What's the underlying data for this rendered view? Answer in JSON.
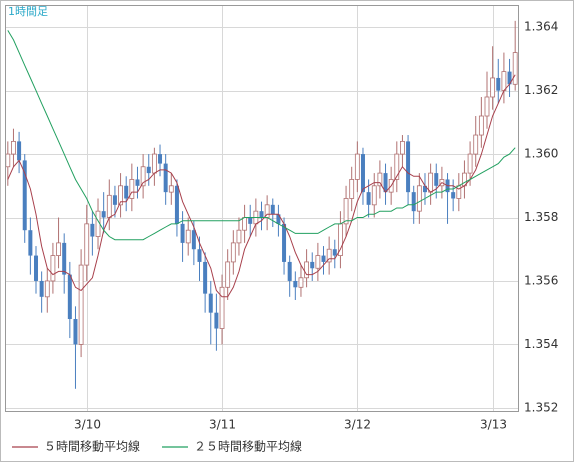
{
  "chart_data": {
    "type": "candlestick",
    "title": "1時間足",
    "categories": [
      null,
      null,
      null,
      null,
      null,
      null,
      null,
      null,
      null,
      null,
      null,
      null,
      null,
      null,
      "3/10",
      null,
      null,
      null,
      null,
      null,
      null,
      null,
      null,
      null,
      null,
      null,
      null,
      null,
      null,
      null,
      null,
      null,
      null,
      null,
      null,
      null,
      null,
      null,
      "3/11",
      null,
      null,
      null,
      null,
      null,
      null,
      null,
      null,
      null,
      null,
      null,
      null,
      null,
      null,
      null,
      null,
      null,
      null,
      null,
      null,
      null,
      null,
      null,
      "3/12",
      null,
      null,
      null,
      null,
      null,
      null,
      null,
      null,
      null,
      null,
      null,
      null,
      null,
      null,
      null,
      null,
      null,
      null,
      null,
      null,
      null,
      null,
      null,
      "3/13",
      null,
      null,
      null,
      null
    ],
    "open": [
      1.3596,
      1.36,
      1.3604,
      1.3598,
      1.3576,
      1.3568,
      1.356,
      1.3555,
      1.356,
      1.3568,
      1.3572,
      1.3562,
      1.3548,
      1.354,
      1.3565,
      1.3578,
      1.3574,
      1.3582,
      1.358,
      1.3587,
      1.3584,
      1.359,
      1.3586,
      1.3592,
      1.359,
      1.3596,
      1.3594,
      1.36,
      1.3597,
      1.3588,
      1.359,
      1.3578,
      1.3572,
      1.3576,
      1.357,
      1.3566,
      1.3556,
      1.355,
      1.3545,
      1.3558,
      1.3566,
      1.3572,
      1.3576,
      1.358,
      1.3578,
      1.3582,
      1.358,
      1.3584,
      1.3581,
      1.3578,
      1.3566,
      1.356,
      1.3558,
      1.3561,
      1.3566,
      1.3564,
      1.3568,
      1.3566,
      1.357,
      1.3568,
      1.3578,
      1.3586,
      1.3592,
      1.36,
      1.3588,
      1.3584,
      1.359,
      1.3594,
      1.3588,
      1.3592,
      1.36,
      1.3604,
      1.3588,
      1.3582,
      1.359,
      1.3588,
      1.3594,
      1.359,
      1.3592,
      1.3588,
      1.3586,
      1.359,
      1.3594,
      1.36,
      1.3606,
      1.3612,
      1.3618,
      1.3624,
      1.362,
      1.3626,
      1.3622
    ],
    "high": [
      1.3604,
      1.3608,
      1.3607,
      1.36,
      1.358,
      1.3571,
      1.3563,
      1.3564,
      1.3572,
      1.358,
      1.3575,
      1.3566,
      1.3552,
      1.357,
      1.3584,
      1.3582,
      1.3586,
      1.3588,
      1.3592,
      1.359,
      1.3594,
      1.3593,
      1.3597,
      1.3596,
      1.36,
      1.36,
      1.3602,
      1.3603,
      1.36,
      1.3594,
      1.3592,
      1.3582,
      1.358,
      1.3579,
      1.3574,
      1.3569,
      1.356,
      1.3556,
      1.3562,
      1.357,
      1.3576,
      1.358,
      1.3584,
      1.3584,
      1.3586,
      1.3585,
      1.3587,
      1.3586,
      1.3584,
      1.358,
      1.3568,
      1.3563,
      1.3565,
      1.357,
      1.3569,
      1.3572,
      1.3571,
      1.3574,
      1.3573,
      1.3582,
      1.359,
      1.3596,
      1.3604,
      1.3602,
      1.3592,
      1.3594,
      1.3598,
      1.3597,
      1.3596,
      1.3604,
      1.3606,
      1.3606,
      1.359,
      1.3594,
      1.3594,
      1.3597,
      1.3597,
      1.3596,
      1.3594,
      1.3592,
      1.3594,
      1.3598,
      1.3604,
      1.3612,
      1.3618,
      1.3626,
      1.3634,
      1.363,
      1.3632,
      1.363,
      1.3642
    ],
    "low": [
      1.359,
      1.3596,
      1.3594,
      1.3572,
      1.3562,
      1.3556,
      1.355,
      1.355,
      1.3556,
      1.3564,
      1.3556,
      1.3542,
      1.3526,
      1.3536,
      1.356,
      1.3568,
      1.357,
      1.3575,
      1.3576,
      1.358,
      1.358,
      1.3582,
      1.3582,
      1.3586,
      1.3586,
      1.359,
      1.359,
      1.3593,
      1.3584,
      1.3584,
      1.3574,
      1.3566,
      1.3568,
      1.3565,
      1.356,
      1.355,
      1.354,
      1.3538,
      1.354,
      1.3554,
      1.3562,
      1.3568,
      1.3572,
      1.3574,
      1.3574,
      1.3576,
      1.3576,
      1.3577,
      1.3574,
      1.3562,
      1.3555,
      1.3554,
      1.3555,
      1.3558,
      1.356,
      1.356,
      1.3562,
      1.3562,
      1.3564,
      1.3564,
      1.3574,
      1.3582,
      1.3588,
      1.3584,
      1.358,
      1.358,
      1.3586,
      1.3584,
      1.3584,
      1.3588,
      1.3596,
      1.3584,
      1.3578,
      1.3578,
      1.3584,
      1.3584,
      1.3586,
      1.3586,
      1.3578,
      1.3582,
      1.3582,
      1.3586,
      1.359,
      1.3596,
      1.3602,
      1.3608,
      1.3614,
      1.3616,
      1.3616,
      1.3618,
      1.362
    ],
    "close": [
      1.36,
      1.3604,
      1.3598,
      1.3576,
      1.3568,
      1.356,
      1.3555,
      1.356,
      1.3568,
      1.3572,
      1.3562,
      1.3548,
      1.354,
      1.3565,
      1.3578,
      1.3574,
      1.3582,
      1.358,
      1.3587,
      1.3584,
      1.359,
      1.3586,
      1.3592,
      1.359,
      1.3596,
      1.3594,
      1.36,
      1.3597,
      1.3588,
      1.359,
      1.3578,
      1.3572,
      1.3576,
      1.357,
      1.3566,
      1.3556,
      1.355,
      1.3545,
      1.3558,
      1.3566,
      1.3572,
      1.3576,
      1.358,
      1.3578,
      1.3582,
      1.358,
      1.3584,
      1.3581,
      1.3578,
      1.3566,
      1.356,
      1.3558,
      1.3561,
      1.3566,
      1.3564,
      1.3568,
      1.3566,
      1.357,
      1.3568,
      1.3578,
      1.3586,
      1.3592,
      1.36,
      1.3588,
      1.3584,
      1.359,
      1.3594,
      1.3588,
      1.3592,
      1.36,
      1.3604,
      1.3588,
      1.3582,
      1.359,
      1.3588,
      1.3594,
      1.359,
      1.3592,
      1.3588,
      1.3586,
      1.359,
      1.3594,
      1.36,
      1.3606,
      1.3612,
      1.3618,
      1.3624,
      1.362,
      1.3626,
      1.3622,
      1.3632
    ],
    "up_color": "#ffffff",
    "up_edge": "#b07070",
    "down_color": "#4a7fbf",
    "series": [
      {
        "name": "５時間移動平均線",
        "color": "#a8404c",
        "values": [
          1.3592,
          1.3596,
          1.3598,
          1.3594,
          1.3589,
          1.3581,
          1.3571,
          1.3564,
          1.3562,
          1.3563,
          1.3563,
          1.3562,
          1.3558,
          1.3557,
          1.3559,
          1.3561,
          1.3568,
          1.3576,
          1.358,
          1.3581,
          1.3585,
          1.3585,
          1.3588,
          1.3588,
          1.3591,
          1.3592,
          1.3594,
          1.3595,
          1.3595,
          1.3594,
          1.3591,
          1.3585,
          1.3581,
          1.3577,
          1.3572,
          1.3568,
          1.3564,
          1.3557,
          1.3555,
          1.3555,
          1.3558,
          1.3563,
          1.357,
          1.3574,
          1.3578,
          1.3579,
          1.3581,
          1.3581,
          1.3581,
          1.3578,
          1.3574,
          1.3569,
          1.3565,
          1.3562,
          1.3562,
          1.3563,
          1.3565,
          1.3567,
          1.3567,
          1.357,
          1.3574,
          1.3579,
          1.3585,
          1.3589,
          1.359,
          1.3591,
          1.3591,
          1.3588,
          1.359,
          1.3593,
          1.3596,
          1.3594,
          1.3593,
          1.3593,
          1.359,
          1.3588,
          1.3589,
          1.3591,
          1.359,
          1.359,
          1.3589,
          1.359,
          1.3592,
          1.3595,
          1.36,
          1.3606,
          1.3612,
          1.3616,
          1.362,
          1.3622,
          1.3625
        ]
      },
      {
        "name": "２５時間移動平均線",
        "color": "#22a060",
        "values": [
          1.3639,
          1.3636,
          1.3632,
          1.3628,
          1.3624,
          1.362,
          1.3616,
          1.3612,
          1.3608,
          1.3604,
          1.36,
          1.3596,
          1.3592,
          1.3589,
          1.3586,
          1.3582,
          1.3579,
          1.3576,
          1.3574,
          1.3573,
          1.3573,
          1.3573,
          1.3573,
          1.3573,
          1.3573,
          1.3574,
          1.3575,
          1.3576,
          1.3577,
          1.3578,
          1.3578,
          1.3579,
          1.3579,
          1.3579,
          1.3579,
          1.3579,
          1.3579,
          1.3579,
          1.3579,
          1.3579,
          1.3579,
          1.3579,
          1.358,
          1.358,
          1.358,
          1.358,
          1.358,
          1.3579,
          1.3578,
          1.3577,
          1.3576,
          1.3575,
          1.3575,
          1.3575,
          1.3575,
          1.3575,
          1.3576,
          1.3577,
          1.3578,
          1.3578,
          1.3579,
          1.3579,
          1.358,
          1.358,
          1.3581,
          1.3581,
          1.3582,
          1.3582,
          1.3582,
          1.3583,
          1.3583,
          1.3584,
          1.3584,
          1.3585,
          1.3586,
          1.3587,
          1.3588,
          1.3588,
          1.3589,
          1.3589,
          1.359,
          1.3591,
          1.3592,
          1.3593,
          1.3594,
          1.3595,
          1.3596,
          1.3597,
          1.3599,
          1.36,
          1.3602
        ]
      }
    ],
    "ylim": [
      1.3519,
      1.3647
    ],
    "yticks": [
      1.352,
      1.354,
      1.356,
      1.358,
      {
        "value": 1.36,
        "label": "1.360"
      },
      1.362,
      1.364
    ],
    "grid": true
  }
}
